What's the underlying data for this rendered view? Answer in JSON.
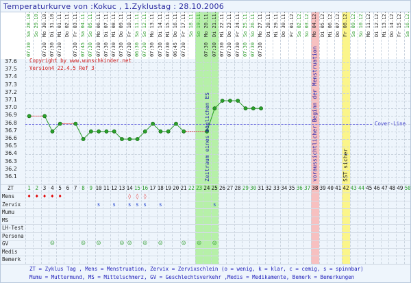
{
  "title": "Temperaturkurve von :Kokuc , 1.Zyklustag : 28.10.2006",
  "copyright": "Copyright by www.wunschkinder.net",
  "version": "Version4 22.4.5 Ref 3",
  "cover_line_label": "Cover-Line",
  "annotations": {
    "es": "Zeitraum eines möglichen ES",
    "mens": "voraussichtlicher Beginn der Menstruation",
    "sst": "SST sicher"
  },
  "colors": {
    "fertile_band": "#b6f0a8",
    "mens_band": "#f7c0c0",
    "sst_band": "#fbf58a",
    "line": "#2a9a2a",
    "missing": "#e03030",
    "cover": "#6a6ae0",
    "weekend": "#2a9a2a"
  },
  "row_labels": [
    "ZT",
    "Mens",
    "Zervix",
    "Mumu",
    "MS",
    "LH-Test",
    "Persona",
    "GV",
    "Medis",
    "Bemerk"
  ],
  "legend": [
    "ZT = Zyklus Tag , Mens = Menstruation, Zervix = Zervixschlein (o = wenig, k = klar, c = cemig, s = spinnbar)",
    "Mumu = Muttermund, MS = Mittelschmerz, GV = Geschlechtsverkehr ,Medis = Medikamente, Bemerk = Bemerkungen"
  ],
  "days": [
    {
      "d": "Sa 28.10.",
      "t": "07:30"
    },
    {
      "d": "So 29.10.",
      "t": ""
    },
    {
      "d": "Mo 30.10.",
      "t": "07:30"
    },
    {
      "d": "Di 31.10.",
      "t": "07:30"
    },
    {
      "d": "Mi 01.11.",
      "t": "07:30"
    },
    {
      "d": "Do 02.11.",
      "t": ""
    },
    {
      "d": "Fr 03.11.",
      "t": "07:30"
    },
    {
      "d": "Sa 04.11.",
      "t": "07:45"
    },
    {
      "d": "So 05.11.",
      "t": "07:30"
    },
    {
      "d": "Mo 06.11.",
      "t": "07:30"
    },
    {
      "d": "Di 07.11.",
      "t": "07:30"
    },
    {
      "d": "Mi 08.11.",
      "t": "07:30"
    },
    {
      "d": "Do 09.11.",
      "t": "07:30"
    },
    {
      "d": "Fr 10.11.",
      "t": "07:30"
    },
    {
      "d": "Sa 11.11.",
      "t": "06:30"
    },
    {
      "d": "So 12.11.",
      "t": "07:30"
    },
    {
      "d": "Mo 13.11.",
      "t": "07:30"
    },
    {
      "d": "Di 14.11.",
      "t": "07:30"
    },
    {
      "d": "Mi 15.11.",
      "t": "07:30"
    },
    {
      "d": "Do 16.11.",
      "t": "06:45"
    },
    {
      "d": "Fr 17.11.",
      "t": "07:30"
    },
    {
      "d": "Sa 18.11.",
      "t": ""
    },
    {
      "d": "So 19.11.",
      "t": ""
    },
    {
      "d": "Mo 20.11.",
      "t": "07:30"
    },
    {
      "d": "Di 21.11.",
      "t": "07:30"
    },
    {
      "d": "Mi 22.11.",
      "t": "07:30"
    },
    {
      "d": "Do 23.11.",
      "t": "07:30"
    },
    {
      "d": "Fr 24.11.",
      "t": "07:30"
    },
    {
      "d": "Sa 25.11.",
      "t": "07:30"
    },
    {
      "d": "So 26.11.",
      "t": "07:30"
    },
    {
      "d": "Mo 27.11.",
      "t": "07:30"
    },
    {
      "d": "Di 28.11.",
      "t": ""
    },
    {
      "d": "Mi 29.11.",
      "t": ""
    },
    {
      "d": "Do 30.11.",
      "t": ""
    },
    {
      "d": "Fr 01.12.",
      "t": ""
    },
    {
      "d": "Sa 02.12.",
      "t": ""
    },
    {
      "d": "So 03.12.",
      "t": ""
    },
    {
      "d": "Mo 04.12.",
      "t": ""
    },
    {
      "d": "Di 05.12.",
      "t": ""
    },
    {
      "d": "Mi 06.12.",
      "t": ""
    },
    {
      "d": "Do 07.12.",
      "t": ""
    },
    {
      "d": "Fr 08.12.",
      "t": ""
    },
    {
      "d": "Sa 09.12.",
      "t": ""
    },
    {
      "d": "So 10.12.",
      "t": ""
    },
    {
      "d": "Mo 11.12.",
      "t": ""
    },
    {
      "d": "Di 12.12.",
      "t": ""
    },
    {
      "d": "Mi 13.12.",
      "t": ""
    },
    {
      "d": "Do 14.12.",
      "t": ""
    },
    {
      "d": "Fr 15.12.",
      "t": ""
    },
    {
      "d": "Sa 16.12.",
      "t": ""
    }
  ],
  "chart_data": {
    "type": "line",
    "title": "Temperaturkurve",
    "x": [
      1,
      2,
      3,
      4,
      5,
      6,
      7,
      8,
      9,
      10,
      11,
      12,
      13,
      14,
      15,
      16,
      17,
      18,
      19,
      20,
      21,
      22,
      23,
      24,
      25,
      26,
      27,
      28,
      29,
      30,
      31
    ],
    "values": [
      36.9,
      null,
      36.9,
      36.7,
      36.8,
      null,
      36.8,
      36.6,
      36.7,
      36.7,
      36.7,
      36.7,
      36.6,
      36.6,
      36.6,
      36.7,
      36.8,
      36.7,
      36.7,
      36.8,
      36.7,
      null,
      null,
      36.7,
      37.0,
      37.1,
      37.1,
      37.1,
      37.0,
      37.0,
      37.0
    ],
    "ylim": [
      36.0,
      37.7
    ],
    "yticks": [
      "37.6",
      "37.5",
      "37.4",
      "37.3",
      "37.2",
      "37.1",
      "37.0",
      "36.9",
      "36.8",
      "36.7",
      "36.6",
      "36.5",
      "36.4",
      "36.3",
      "36.2",
      "36.1"
    ],
    "cover_line": 36.8,
    "xlabel": "ZT",
    "days_total": 50,
    "fertile_days": [
      23,
      24,
      25
    ],
    "expected_mens_day": 38,
    "sst_day": 42
  },
  "marks": {
    "mens_full": [
      1,
      2,
      3,
      4,
      5
    ],
    "mens_light": [
      14,
      15,
      16
    ],
    "zervix": {
      "days": [
        10,
        12,
        14,
        15,
        16,
        18,
        25
      ],
      "symbol": "s"
    },
    "gv": [
      4,
      8,
      10,
      13,
      14,
      16,
      18,
      21,
      23,
      25
    ]
  },
  "symbols": {
    "drop": "♦",
    "drop_light": "◊",
    "smiley": "☺"
  }
}
